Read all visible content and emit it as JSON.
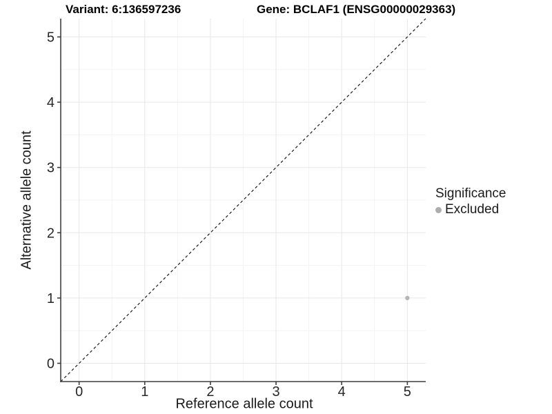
{
  "chart_data": {
    "type": "scatter",
    "title_left": "Variant: 6:136597236",
    "title_right": "Gene: BCLAF1 (ENSG00000029363)",
    "xlabel": "Reference allele count",
    "ylabel": "Alternative allele count",
    "xlim": [
      -0.28,
      5.28
    ],
    "ylim": [
      -0.28,
      5.28
    ],
    "xticks": [
      0,
      1,
      2,
      3,
      4,
      5
    ],
    "yticks": [
      0,
      1,
      2,
      3,
      4,
      5
    ],
    "minor_gridlines": true,
    "grid": {
      "major": "#e7e7e7",
      "minor": "#f3f3f3"
    },
    "axis_color": "#3d3d3d",
    "text_color": "#262626",
    "identity_line": {
      "style": "dashed",
      "color": "#1a1a1a",
      "from": [
        -0.28,
        -0.28
      ],
      "to": [
        5.28,
        5.28
      ]
    },
    "points": [
      {
        "x": 5,
        "y": 1,
        "series": "Excluded"
      }
    ],
    "series_colors": {
      "Excluded": "#b6b6b6"
    },
    "legend": {
      "title": "Significance",
      "position": "right",
      "items": [
        {
          "label": "Excluded",
          "color": "#adadad"
        }
      ]
    }
  }
}
